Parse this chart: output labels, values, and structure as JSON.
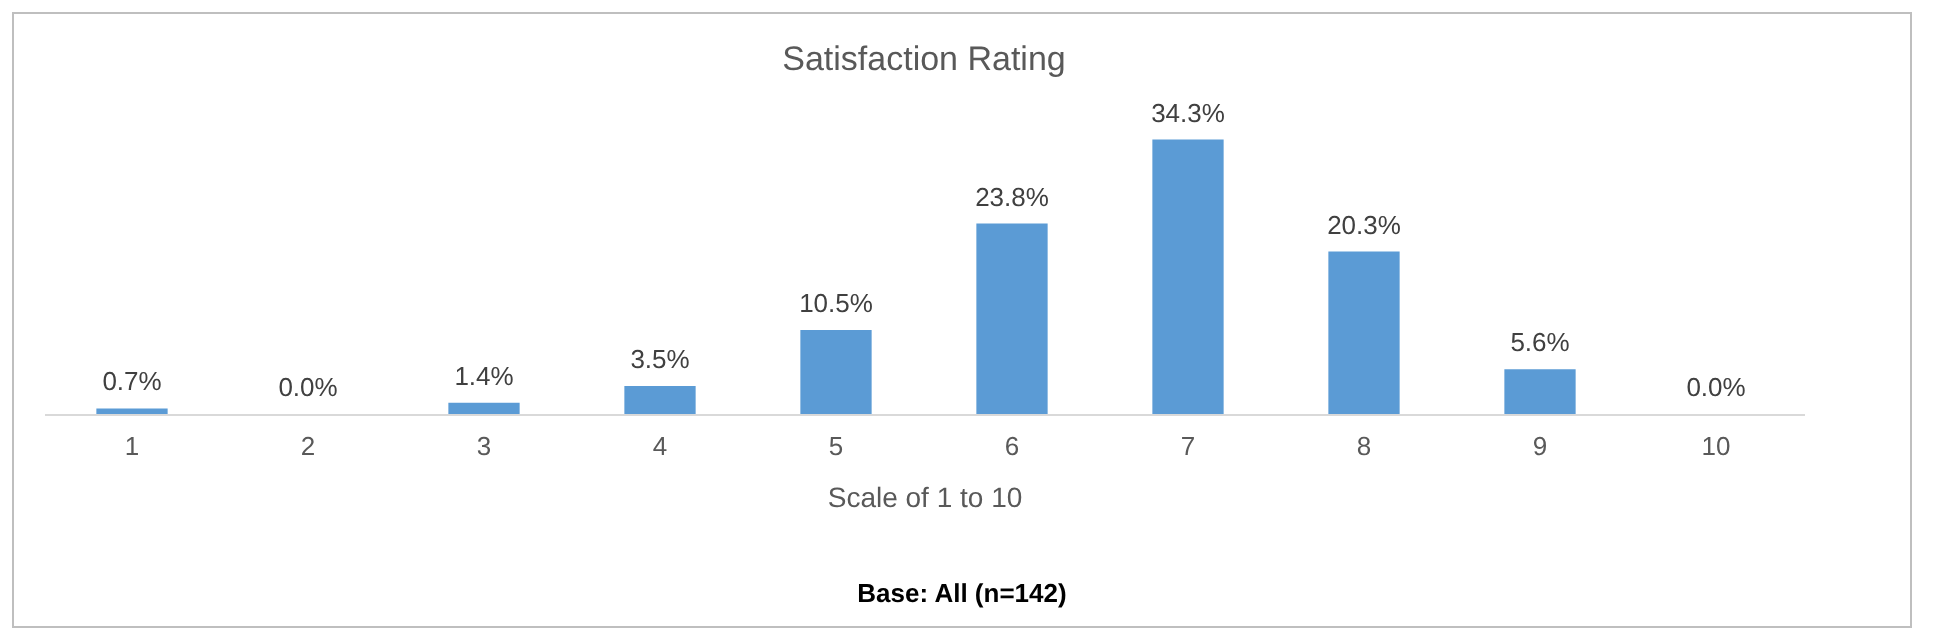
{
  "chart_data": {
    "type": "bar",
    "title": "Satisfaction Rating",
    "xlabel": "Scale of 1 to 10",
    "categories": [
      "1",
      "2",
      "3",
      "4",
      "5",
      "6",
      "7",
      "8",
      "9",
      "10"
    ],
    "values": [
      0.7,
      0.0,
      1.4,
      3.5,
      10.5,
      23.8,
      34.3,
      20.3,
      5.6,
      0.0
    ],
    "value_labels": [
      "0.7%",
      "0.0%",
      "1.4%",
      "3.5%",
      "10.5%",
      "23.8%",
      "34.3%",
      "20.3%",
      "5.6%",
      "0.0%"
    ],
    "color": "#5b9bd5",
    "grid": false,
    "annotations": [
      "Base: All (n=142)"
    ]
  }
}
